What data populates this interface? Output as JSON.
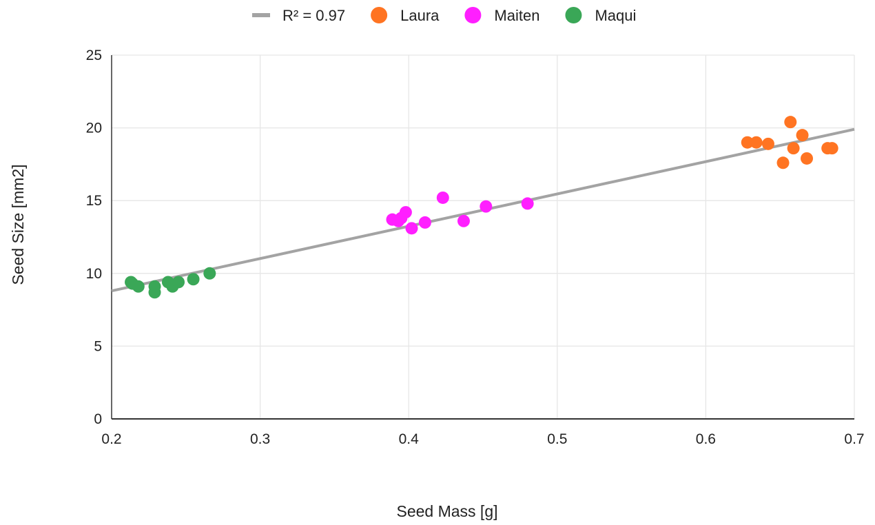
{
  "chart_data": {
    "type": "scatter",
    "xlabel": "Seed Mass [g]",
    "ylabel": "Seed Size [mm2]",
    "xlim": [
      0.2,
      0.7
    ],
    "ylim": [
      0,
      25
    ],
    "x_ticks": [
      "0.2",
      "0.3",
      "0.4",
      "0.5",
      "0.6",
      "0.7"
    ],
    "y_ticks": [
      "0",
      "5",
      "10",
      "15",
      "20",
      "25"
    ],
    "grid": true,
    "legend_position": "top",
    "trendline": {
      "label": "R² = 0.97",
      "color": "#a3a3a3",
      "points": [
        [
          0.2,
          8.8
        ],
        [
          0.7,
          19.9
        ]
      ]
    },
    "series": [
      {
        "name": "Laura",
        "color": "#ff7422",
        "points": [
          [
            0.628,
            19.0
          ],
          [
            0.634,
            19.0
          ],
          [
            0.642,
            18.9
          ],
          [
            0.652,
            17.6
          ],
          [
            0.657,
            20.4
          ],
          [
            0.659,
            18.6
          ],
          [
            0.665,
            19.5
          ],
          [
            0.668,
            17.9
          ],
          [
            0.682,
            18.6
          ],
          [
            0.685,
            18.6
          ]
        ]
      },
      {
        "name": "Maiten",
        "color": "#ff1fff",
        "points": [
          [
            0.389,
            13.7
          ],
          [
            0.393,
            13.6
          ],
          [
            0.395,
            13.8
          ],
          [
            0.398,
            14.2
          ],
          [
            0.402,
            13.1
          ],
          [
            0.411,
            13.5
          ],
          [
            0.423,
            15.2
          ],
          [
            0.437,
            13.6
          ],
          [
            0.452,
            14.6
          ],
          [
            0.48,
            14.8
          ]
        ]
      },
      {
        "name": "Maqui",
        "color": "#3aa757",
        "points": [
          [
            0.213,
            9.4
          ],
          [
            0.214,
            9.3
          ],
          [
            0.218,
            9.1
          ],
          [
            0.229,
            9.1
          ],
          [
            0.229,
            8.7
          ],
          [
            0.238,
            9.4
          ],
          [
            0.241,
            9.1
          ],
          [
            0.245,
            9.4
          ],
          [
            0.255,
            9.6
          ],
          [
            0.266,
            10.0
          ]
        ]
      }
    ]
  }
}
